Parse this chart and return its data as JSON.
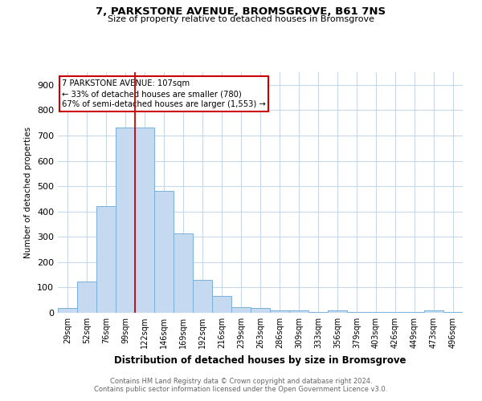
{
  "title": "7, PARKSTONE AVENUE, BROMSGROVE, B61 7NS",
  "subtitle": "Size of property relative to detached houses in Bromsgrove",
  "xlabel": "Distribution of detached houses by size in Bromsgrove",
  "ylabel": "Number of detached properties",
  "categories": [
    "29sqm",
    "52sqm",
    "76sqm",
    "99sqm",
    "122sqm",
    "146sqm",
    "169sqm",
    "192sqm",
    "216sqm",
    "239sqm",
    "263sqm",
    "286sqm",
    "309sqm",
    "333sqm",
    "356sqm",
    "379sqm",
    "403sqm",
    "426sqm",
    "449sqm",
    "473sqm",
    "496sqm"
  ],
  "values": [
    20,
    122,
    420,
    730,
    730,
    480,
    315,
    130,
    65,
    22,
    20,
    10,
    8,
    2,
    8,
    2,
    2,
    2,
    2,
    8,
    2
  ],
  "bar_color": "#c5d9f0",
  "bar_edge_color": "#7ab0d8",
  "background_color": "#ffffff",
  "grid_color": "#c8d8e8",
  "red_line_x": 3.5,
  "annotation_line1": "7 PARKSTONE AVENUE: 107sqm",
  "annotation_line2": "← 33% of detached houses are smaller (780)",
  "annotation_line3": "67% of semi-detached houses are larger (1,553) →",
  "annotation_box_color": "#ffffff",
  "annotation_box_edge": "#cc0000",
  "ylim": [
    0,
    950
  ],
  "yticks": [
    0,
    100,
    200,
    300,
    400,
    500,
    600,
    700,
    800,
    900
  ],
  "footnote_line1": "Contains HM Land Registry data © Crown copyright and database right 2024.",
  "footnote_line2": "Contains public sector information licensed under the Open Government Licence v3.0."
}
